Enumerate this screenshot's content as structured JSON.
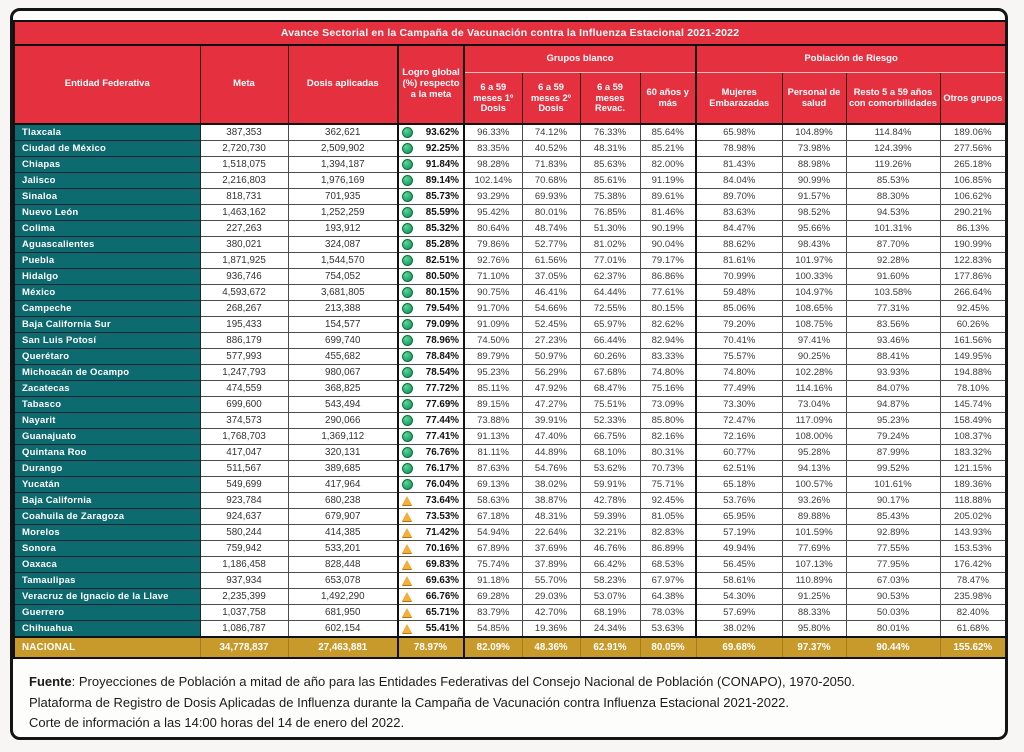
{
  "title": "Avance Sectorial en la Campaña de Vacunación contra la Influenza Estacional 2021-2022",
  "columns": {
    "entidad": "Entidad Federativa",
    "meta": "Meta",
    "dosis": "Dosis aplicadas",
    "logro": "Logro global (%) respecto a la meta",
    "grupos_blanco": "Grupos blanco",
    "poblacion_riesgo": "Población de Riesgo",
    "sub": [
      "6 a 59 meses 1º Dosis",
      "6 a 59 meses 2º Dosis",
      "6 a 59 meses Revac.",
      "60 años y más",
      "Mujeres Embarazadas",
      "Personal de salud",
      "Resto 5 a 59 años con comorbilidades",
      "Otros grupos"
    ]
  },
  "colors": {
    "header_red": "#e5303f",
    "state_teal": "#0d6a6e",
    "national_gold": "#c79a2b",
    "status_ok": "#27a463",
    "status_warning": "#f3ae3d"
  },
  "icons": {
    "ok": "green-circle-icon",
    "warning": "yellow-triangle-icon"
  },
  "rows": [
    {
      "entidad": "Tlaxcala",
      "meta": "387,353",
      "dosis": "362,621",
      "logro": "93.62%",
      "status": "ok",
      "values": [
        "96.33%",
        "74.12%",
        "76.33%",
        "85.64%",
        "65.98%",
        "104.89%",
        "114.84%",
        "189.06%"
      ]
    },
    {
      "entidad": "Ciudad de México",
      "meta": "2,720,730",
      "dosis": "2,509,902",
      "logro": "92.25%",
      "status": "ok",
      "values": [
        "83.35%",
        "40.52%",
        "48.31%",
        "85.21%",
        "78.98%",
        "73.98%",
        "124.39%",
        "277.56%"
      ]
    },
    {
      "entidad": "Chiapas",
      "meta": "1,518,075",
      "dosis": "1,394,187",
      "logro": "91.84%",
      "status": "ok",
      "values": [
        "98.28%",
        "71.83%",
        "85.63%",
        "82.00%",
        "81.43%",
        "88.98%",
        "119.26%",
        "265.18%"
      ]
    },
    {
      "entidad": "Jalisco",
      "meta": "2,216,803",
      "dosis": "1,976,169",
      "logro": "89.14%",
      "status": "ok",
      "values": [
        "102.14%",
        "70.68%",
        "85.61%",
        "91.19%",
        "84.04%",
        "90.99%",
        "85.53%",
        "106.85%"
      ]
    },
    {
      "entidad": "Sinaloa",
      "meta": "818,731",
      "dosis": "701,935",
      "logro": "85.73%",
      "status": "ok",
      "values": [
        "93.29%",
        "69.93%",
        "75.38%",
        "89.61%",
        "89.70%",
        "91.57%",
        "88.30%",
        "106.62%"
      ]
    },
    {
      "entidad": "Nuevo León",
      "meta": "1,463,162",
      "dosis": "1,252,259",
      "logro": "85.59%",
      "status": "ok",
      "values": [
        "95.42%",
        "80.01%",
        "76.85%",
        "81.46%",
        "83.63%",
        "98.52%",
        "94.53%",
        "290.21%"
      ]
    },
    {
      "entidad": "Colima",
      "meta": "227,263",
      "dosis": "193,912",
      "logro": "85.32%",
      "status": "ok",
      "values": [
        "80.64%",
        "48.74%",
        "51.30%",
        "90.19%",
        "84.47%",
        "95.66%",
        "101.31%",
        "86.13%"
      ]
    },
    {
      "entidad": "Aguascalientes",
      "meta": "380,021",
      "dosis": "324,087",
      "logro": "85.28%",
      "status": "ok",
      "values": [
        "79.86%",
        "52.77%",
        "81.02%",
        "90.04%",
        "88.62%",
        "98.43%",
        "87.70%",
        "190.99%"
      ]
    },
    {
      "entidad": "Puebla",
      "meta": "1,871,925",
      "dosis": "1,544,570",
      "logro": "82.51%",
      "status": "ok",
      "values": [
        "92.76%",
        "61.56%",
        "77.01%",
        "79.17%",
        "81.61%",
        "101.97%",
        "92.28%",
        "122.83%"
      ]
    },
    {
      "entidad": "Hidalgo",
      "meta": "936,746",
      "dosis": "754,052",
      "logro": "80.50%",
      "status": "ok",
      "values": [
        "71.10%",
        "37.05%",
        "62.37%",
        "86.86%",
        "70.99%",
        "100.33%",
        "91.60%",
        "177.86%"
      ]
    },
    {
      "entidad": "México",
      "meta": "4,593,672",
      "dosis": "3,681,805",
      "logro": "80.15%",
      "status": "ok",
      "values": [
        "90.75%",
        "46.41%",
        "64.44%",
        "77.61%",
        "59.48%",
        "104.97%",
        "103.58%",
        "266.64%"
      ]
    },
    {
      "entidad": "Campeche",
      "meta": "268,267",
      "dosis": "213,388",
      "logro": "79.54%",
      "status": "ok",
      "values": [
        "91.70%",
        "54.66%",
        "72.55%",
        "80.15%",
        "85.06%",
        "108.65%",
        "77.31%",
        "92.45%"
      ]
    },
    {
      "entidad": "Baja California Sur",
      "meta": "195,433",
      "dosis": "154,577",
      "logro": "79.09%",
      "status": "ok",
      "values": [
        "91.09%",
        "52.45%",
        "65.97%",
        "82.62%",
        "79.20%",
        "108.75%",
        "83.56%",
        "60.26%"
      ]
    },
    {
      "entidad": "San Luis Potosí",
      "meta": "886,179",
      "dosis": "699,740",
      "logro": "78.96%",
      "status": "ok",
      "values": [
        "74.50%",
        "27.23%",
        "66.44%",
        "82.94%",
        "70.41%",
        "97.41%",
        "93.46%",
        "161.56%"
      ]
    },
    {
      "entidad": "Querétaro",
      "meta": "577,993",
      "dosis": "455,682",
      "logro": "78.84%",
      "status": "ok",
      "values": [
        "89.79%",
        "50.97%",
        "60.26%",
        "83.33%",
        "75.57%",
        "90.25%",
        "88.41%",
        "149.95%"
      ]
    },
    {
      "entidad": "Michoacán de Ocampo",
      "meta": "1,247,793",
      "dosis": "980,067",
      "logro": "78.54%",
      "status": "ok",
      "values": [
        "95.23%",
        "56.29%",
        "67.68%",
        "74.80%",
        "74.80%",
        "102.28%",
        "93.93%",
        "194.88%"
      ]
    },
    {
      "entidad": "Zacatecas",
      "meta": "474,559",
      "dosis": "368,825",
      "logro": "77.72%",
      "status": "ok",
      "values": [
        "85.11%",
        "47.92%",
        "68.47%",
        "75.16%",
        "77.49%",
        "114.16%",
        "84.07%",
        "78.10%"
      ]
    },
    {
      "entidad": "Tabasco",
      "meta": "699,600",
      "dosis": "543,494",
      "logro": "77.69%",
      "status": "ok",
      "values": [
        "89.15%",
        "47.27%",
        "75.51%",
        "73.09%",
        "73.30%",
        "73.04%",
        "94.87%",
        "145.74%"
      ]
    },
    {
      "entidad": "Nayarit",
      "meta": "374,573",
      "dosis": "290,066",
      "logro": "77.44%",
      "status": "ok",
      "values": [
        "73.88%",
        "39.91%",
        "52.33%",
        "85.80%",
        "72.47%",
        "117.09%",
        "95.23%",
        "158.49%"
      ]
    },
    {
      "entidad": "Guanajuato",
      "meta": "1,768,703",
      "dosis": "1,369,112",
      "logro": "77.41%",
      "status": "ok",
      "values": [
        "91.13%",
        "47.40%",
        "66.75%",
        "82.16%",
        "72.16%",
        "108.00%",
        "79.24%",
        "108.37%"
      ]
    },
    {
      "entidad": "Quintana Roo",
      "meta": "417,047",
      "dosis": "320,131",
      "logro": "76.76%",
      "status": "ok",
      "values": [
        "81.11%",
        "44.89%",
        "68.10%",
        "80.31%",
        "60.77%",
        "95.28%",
        "87.99%",
        "183.32%"
      ]
    },
    {
      "entidad": "Durango",
      "meta": "511,567",
      "dosis": "389,685",
      "logro": "76.17%",
      "status": "ok",
      "values": [
        "87.63%",
        "54.76%",
        "53.62%",
        "70.73%",
        "62.51%",
        "94.13%",
        "99.52%",
        "121.15%"
      ]
    },
    {
      "entidad": "Yucatán",
      "meta": "549,699",
      "dosis": "417,964",
      "logro": "76.04%",
      "status": "ok",
      "values": [
        "69.13%",
        "38.02%",
        "59.91%",
        "75.71%",
        "65.18%",
        "100.57%",
        "101.61%",
        "189.36%"
      ]
    },
    {
      "entidad": "Baja California",
      "meta": "923,784",
      "dosis": "680,238",
      "logro": "73.64%",
      "status": "warning",
      "values": [
        "58.63%",
        "38.87%",
        "42.78%",
        "92.45%",
        "53.76%",
        "93.26%",
        "90.17%",
        "118.88%"
      ]
    },
    {
      "entidad": "Coahuila de Zaragoza",
      "meta": "924,637",
      "dosis": "679,907",
      "logro": "73.53%",
      "status": "warning",
      "values": [
        "67.18%",
        "48.31%",
        "59.39%",
        "81.05%",
        "65.95%",
        "89.88%",
        "85.43%",
        "205.02%"
      ]
    },
    {
      "entidad": "Morelos",
      "meta": "580,244",
      "dosis": "414,385",
      "logro": "71.42%",
      "status": "warning",
      "values": [
        "54.94%",
        "22.64%",
        "32.21%",
        "82.83%",
        "57.19%",
        "101.59%",
        "92.89%",
        "143.93%"
      ]
    },
    {
      "entidad": "Sonora",
      "meta": "759,942",
      "dosis": "533,201",
      "logro": "70.16%",
      "status": "warning",
      "values": [
        "67.89%",
        "37.69%",
        "46.76%",
        "86.89%",
        "49.94%",
        "77.69%",
        "77.55%",
        "153.53%"
      ]
    },
    {
      "entidad": "Oaxaca",
      "meta": "1,186,458",
      "dosis": "828,448",
      "logro": "69.83%",
      "status": "warning",
      "values": [
        "75.74%",
        "37.89%",
        "66.42%",
        "68.53%",
        "56.45%",
        "107.13%",
        "77.95%",
        "176.42%"
      ]
    },
    {
      "entidad": "Tamaulipas",
      "meta": "937,934",
      "dosis": "653,078",
      "logro": "69.63%",
      "status": "warning",
      "values": [
        "91.18%",
        "55.70%",
        "58.23%",
        "67.97%",
        "58.61%",
        "110.89%",
        "67.03%",
        "78.47%"
      ]
    },
    {
      "entidad": "Veracruz de Ignacio de la Llave",
      "meta": "2,235,399",
      "dosis": "1,492,290",
      "logro": "66.76%",
      "status": "warning",
      "values": [
        "69.28%",
        "29.03%",
        "53.07%",
        "64.38%",
        "54.30%",
        "91.25%",
        "90.53%",
        "235.98%"
      ]
    },
    {
      "entidad": "Guerrero",
      "meta": "1,037,758",
      "dosis": "681,950",
      "logro": "65.71%",
      "status": "warning",
      "values": [
        "83.79%",
        "42.70%",
        "68.19%",
        "78.03%",
        "57.69%",
        "88.33%",
        "50.03%",
        "82.40%"
      ]
    },
    {
      "entidad": "Chihuahua",
      "meta": "1,086,787",
      "dosis": "602,154",
      "logro": "55.41%",
      "status": "warning",
      "values": [
        "54.85%",
        "19.36%",
        "24.34%",
        "53.63%",
        "38.02%",
        "95.80%",
        "80.01%",
        "61.68%"
      ]
    }
  ],
  "national": {
    "entidad": "NACIONAL",
    "meta": "34,778,837",
    "dosis": "27,463,881",
    "logro": "78.97%",
    "values": [
      "82.09%",
      "48.36%",
      "62.91%",
      "80.05%",
      "69.68%",
      "97.37%",
      "90.44%",
      "155.62%"
    ]
  },
  "footer": {
    "source_label": "Fuente",
    "line1": ": Proyecciones de Población a mitad de año para las Entidades Federativas del Consejo Nacional de Población (CONAPO), 1970-2050.",
    "line2": "Plataforma de Registro de Dosis Aplicadas de Influenza durante la Campaña de Vacunación contra Influenza Estacional 2021-2022.",
    "line3": "Corte de información a las 14:00 horas del 14 de enero del 2022."
  }
}
